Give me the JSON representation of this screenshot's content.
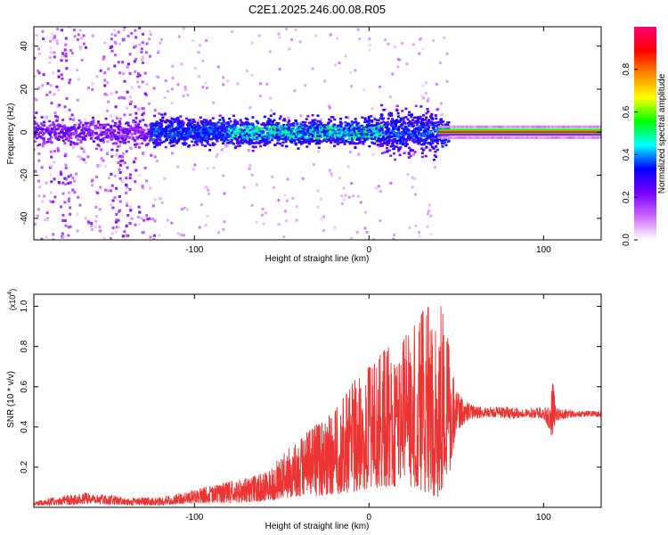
{
  "title": "C2E1.2025.246.00.08.R05",
  "chart_data": [
    {
      "type": "heatmap",
      "name": "spectrogram",
      "xlabel": "Height of straight line (km)",
      "ylabel": "Frequency (Hz)",
      "xlim": [
        -192,
        133
      ],
      "ylim": [
        -50,
        49
      ],
      "xticks": [
        -100,
        0,
        100
      ],
      "yticks": [
        -40,
        -20,
        0,
        20,
        40
      ],
      "colorbar": {
        "label": "Normalized spectral amplitude",
        "range": [
          0,
          1
        ],
        "ticks": [
          "0.0",
          "0.2",
          "0.4",
          "0.6",
          "0.8"
        ],
        "tick_values": [
          0.0,
          0.2,
          0.4,
          0.6,
          0.8
        ],
        "stops": [
          "#ffffff",
          "#cc66ff",
          "#7700ff",
          "#0000ff",
          "#00ffff",
          "#00ff00",
          "#ffff00",
          "#ff8800",
          "#ff0000",
          "#ff0077"
        ]
      },
      "features": [
        {
          "region": "x < -120 km",
          "description": "broadband scattered energy, weak (0.05-0.2)"
        },
        {
          "region": "-125 to 45 km",
          "description": "central band near 0 Hz, +/-10 Hz, amplitude 0.2-0.5"
        },
        {
          "region": "> 45 km",
          "description": "narrow line at 0 Hz, amplitude ~1.0"
        }
      ]
    },
    {
      "type": "line",
      "name": "snr",
      "xlabel": "Height of straight line (km)",
      "ylabel": "SNR (10 * v/v)",
      "yscale_label": "(x10",
      "yscale_exp": "4",
      "xlim": [
        -192,
        133
      ],
      "ylim": [
        0,
        1.06
      ],
      "xticks": [
        -100,
        0,
        100
      ],
      "yticks": [
        0.2,
        0.4,
        0.6,
        0.8,
        1.0
      ],
      "color": "#ee3333",
      "series": [
        {
          "name": "SNR envelope",
          "x": [
            -192,
            -175,
            -160,
            -140,
            -120,
            -100,
            -80,
            -60,
            -40,
            -20,
            -10,
            0,
            10,
            20,
            30,
            35,
            40,
            45,
            50,
            55,
            60,
            70,
            80,
            90,
            100,
            104,
            105,
            107,
            110,
            120,
            133
          ],
          "low": [
            0.01,
            0.01,
            0.02,
            0.01,
            0.01,
            0.02,
            0.02,
            0.03,
            0.05,
            0.06,
            0.07,
            0.09,
            0.1,
            0.1,
            0.08,
            0.06,
            0.05,
            0.1,
            0.38,
            0.42,
            0.44,
            0.45,
            0.44,
            0.45,
            0.44,
            0.38,
            0.3,
            0.42,
            0.44,
            0.45,
            0.45
          ],
          "high": [
            0.03,
            0.06,
            0.08,
            0.05,
            0.05,
            0.09,
            0.13,
            0.17,
            0.35,
            0.48,
            0.62,
            0.7,
            0.8,
            0.84,
            0.97,
            1.02,
            1.06,
            0.85,
            0.58,
            0.53,
            0.51,
            0.5,
            0.5,
            0.49,
            0.5,
            0.5,
            0.64,
            0.52,
            0.49,
            0.48,
            0.48
          ]
        }
      ]
    }
  ]
}
